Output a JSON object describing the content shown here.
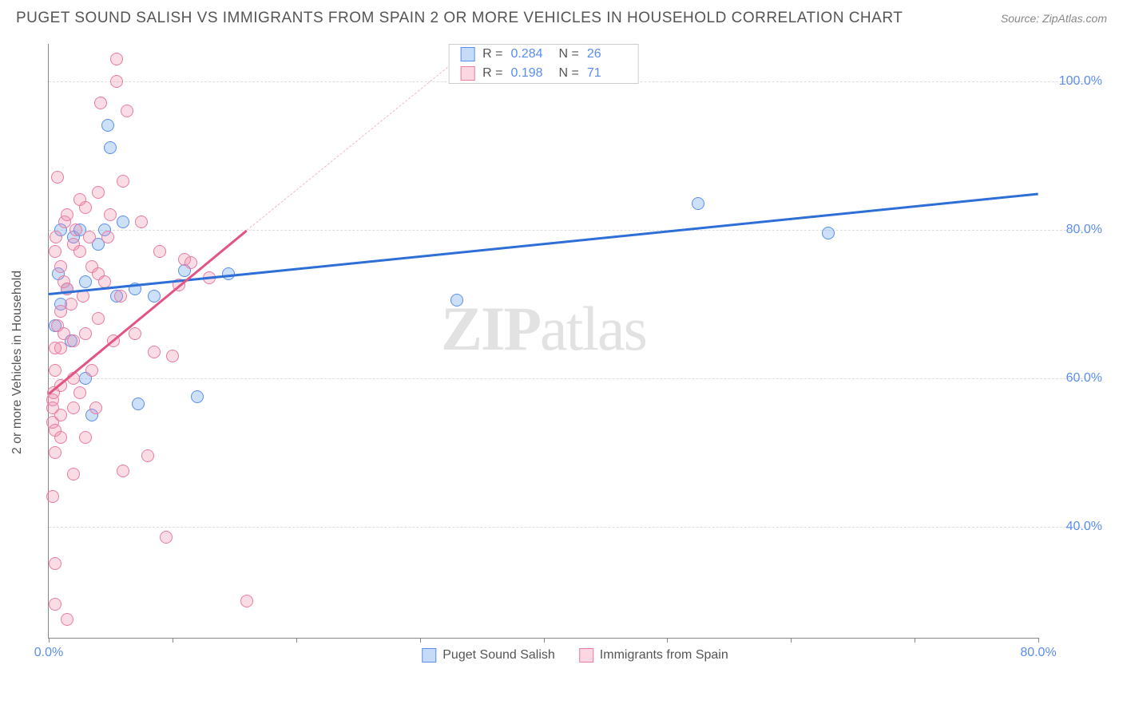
{
  "header": {
    "title": "PUGET SOUND SALISH VS IMMIGRANTS FROM SPAIN 2 OR MORE VEHICLES IN HOUSEHOLD CORRELATION CHART",
    "source": "Source: ZipAtlas.com"
  },
  "watermark": {
    "part1": "ZIP",
    "part2": "atlas"
  },
  "chart": {
    "type": "scatter",
    "y_axis_label": "2 or more Vehicles in Household",
    "background_color": "#ffffff",
    "grid_color": "#dddddd",
    "axis_color": "#888888",
    "xlim": [
      0,
      80
    ],
    "ylim": [
      25,
      105
    ],
    "x_ticks": [
      0,
      10,
      20,
      30,
      40,
      50,
      60,
      70,
      80
    ],
    "x_tick_labels": {
      "0": "0.0%",
      "80": "80.0%"
    },
    "y_ticks": [
      40,
      60,
      80,
      100
    ],
    "y_tick_labels": {
      "40": "40.0%",
      "60": "60.0%",
      "80": "80.0%",
      "100": "100.0%"
    },
    "legend_top": {
      "rows": [
        {
          "swatch": "blue",
          "r_label": "R =",
          "r_value": "0.284",
          "n_label": "N =",
          "n_value": "26"
        },
        {
          "swatch": "pink",
          "r_label": "R =",
          "r_value": "0.198",
          "n_label": "N =",
          "n_value": "71"
        }
      ]
    },
    "legend_bottom": {
      "items": [
        {
          "swatch": "blue",
          "label": "Puget Sound Salish"
        },
        {
          "swatch": "pink",
          "label": "Immigrants from Spain"
        }
      ]
    },
    "trend_lines": [
      {
        "color": "#2d6fd6",
        "width": 2.5,
        "x1": 0,
        "y1": 71.5,
        "x2": 80,
        "y2": 85,
        "dashed_from_x": null
      },
      {
        "color": "#e25582",
        "width": 2.5,
        "x1": 0,
        "y1": 58,
        "x2": 16,
        "y2": 80,
        "dashed_from_x": null
      },
      {
        "color": "#f4b6c8",
        "width": 1.5,
        "x1": 16,
        "y1": 80,
        "x2": 33,
        "y2": 103,
        "dashed": true
      }
    ],
    "series": [
      {
        "name": "Puget Sound Salish",
        "color_fill": "rgba(110,165,235,0.35)",
        "color_stroke": "#5b8def",
        "marker_size": 16,
        "points": [
          [
            0.5,
            67
          ],
          [
            0.8,
            74
          ],
          [
            1.0,
            70
          ],
          [
            1.0,
            80
          ],
          [
            1.5,
            72
          ],
          [
            1.8,
            65
          ],
          [
            2.0,
            79
          ],
          [
            2.5,
            80
          ],
          [
            3.0,
            60
          ],
          [
            3.0,
            73
          ],
          [
            3.5,
            55
          ],
          [
            4.0,
            78
          ],
          [
            4.5,
            80
          ],
          [
            4.8,
            94
          ],
          [
            5.0,
            91
          ],
          [
            5.5,
            71
          ],
          [
            6.0,
            81
          ],
          [
            7.0,
            72
          ],
          [
            7.2,
            56.5
          ],
          [
            8.5,
            71
          ],
          [
            11.0,
            74.5
          ],
          [
            12.0,
            57.5
          ],
          [
            14.5,
            74
          ],
          [
            33.0,
            70.5
          ],
          [
            52.5,
            83.5
          ],
          [
            63.0,
            79.5
          ]
        ]
      },
      {
        "name": "Immigrants from Spain",
        "color_fill": "rgba(240,140,170,0.3)",
        "color_stroke": "#e87ca0",
        "marker_size": 16,
        "points": [
          [
            0.3,
            44
          ],
          [
            0.3,
            54
          ],
          [
            0.3,
            56
          ],
          [
            0.3,
            57
          ],
          [
            0.4,
            58
          ],
          [
            0.5,
            29.5
          ],
          [
            0.5,
            35
          ],
          [
            0.5,
            50
          ],
          [
            0.5,
            53
          ],
          [
            0.5,
            61
          ],
          [
            0.5,
            64
          ],
          [
            0.5,
            77
          ],
          [
            0.6,
            79
          ],
          [
            0.7,
            67
          ],
          [
            0.7,
            87
          ],
          [
            1.0,
            52
          ],
          [
            1.0,
            55
          ],
          [
            1.0,
            59
          ],
          [
            1.0,
            64
          ],
          [
            1.0,
            69
          ],
          [
            1.0,
            75
          ],
          [
            1.2,
            66
          ],
          [
            1.2,
            73
          ],
          [
            1.3,
            81
          ],
          [
            1.5,
            27.5
          ],
          [
            1.5,
            72
          ],
          [
            1.5,
            82
          ],
          [
            1.8,
            70
          ],
          [
            2.0,
            47
          ],
          [
            2.0,
            56
          ],
          [
            2.0,
            60
          ],
          [
            2.0,
            65
          ],
          [
            2.0,
            78
          ],
          [
            2.2,
            80
          ],
          [
            2.5,
            58
          ],
          [
            2.5,
            77
          ],
          [
            2.5,
            84
          ],
          [
            2.8,
            71
          ],
          [
            3.0,
            52
          ],
          [
            3.0,
            66
          ],
          [
            3.0,
            83
          ],
          [
            3.3,
            79
          ],
          [
            3.5,
            61
          ],
          [
            3.5,
            75
          ],
          [
            3.8,
            56
          ],
          [
            4.0,
            68
          ],
          [
            4.0,
            74
          ],
          [
            4.0,
            85
          ],
          [
            4.2,
            97
          ],
          [
            4.5,
            73
          ],
          [
            4.8,
            79
          ],
          [
            5.0,
            82
          ],
          [
            5.2,
            65
          ],
          [
            5.5,
            100
          ],
          [
            5.5,
            103
          ],
          [
            5.8,
            71
          ],
          [
            6.0,
            47.5
          ],
          [
            6.0,
            86.5
          ],
          [
            6.3,
            96
          ],
          [
            7.0,
            66
          ],
          [
            7.5,
            81
          ],
          [
            8.0,
            49.5
          ],
          [
            8.5,
            63.5
          ],
          [
            9.0,
            77
          ],
          [
            9.5,
            38.5
          ],
          [
            10.0,
            63
          ],
          [
            10.5,
            72.5
          ],
          [
            11.0,
            76
          ],
          [
            11.5,
            75.5
          ],
          [
            13.0,
            73.5
          ],
          [
            16.0,
            30
          ]
        ]
      }
    ]
  }
}
